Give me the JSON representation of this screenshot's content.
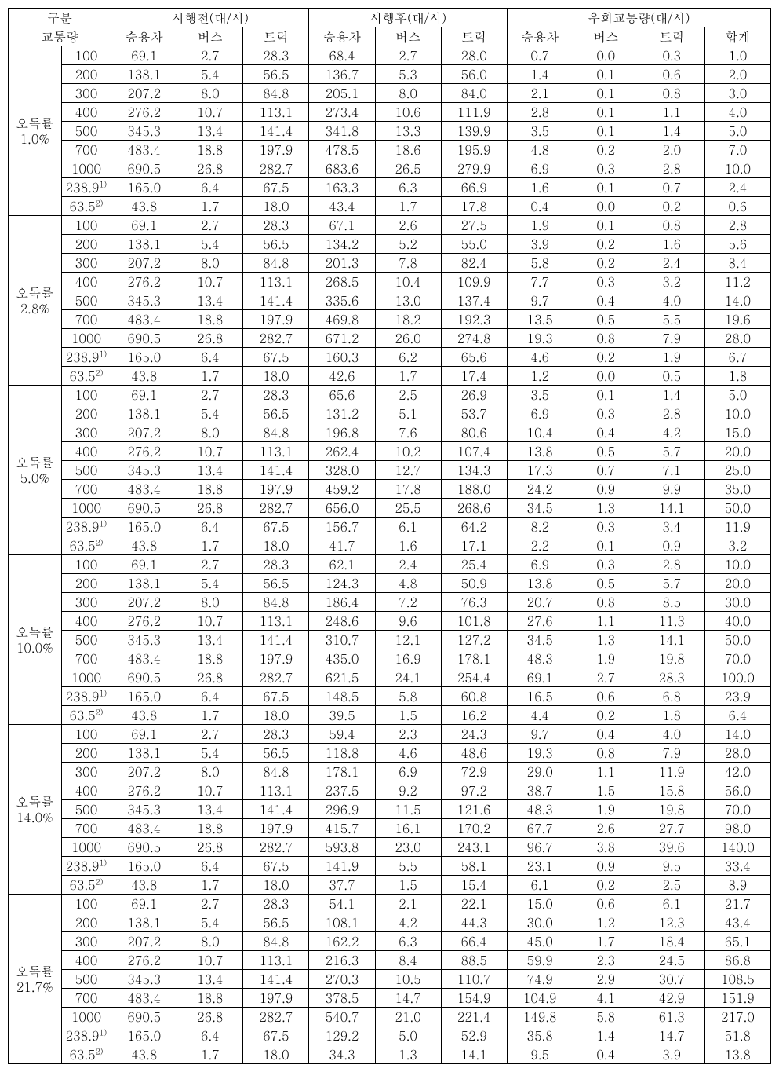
{
  "header": {
    "group": "구분",
    "traffic": "교통량",
    "before": "시행전(대/시)",
    "after": "시행후(대/시)",
    "detour": "우회교통량(대/시)",
    "car": "승용차",
    "bus": "버스",
    "truck": "트럭",
    "sum": "합계"
  },
  "traffic_labels": [
    "100",
    "200",
    "300",
    "400",
    "500",
    "700",
    "1000",
    "238.9",
    "63.5"
  ],
  "traffic_sup": [
    "",
    "",
    "",
    "",
    "",
    "",
    "",
    "1)",
    "2)"
  ],
  "groups": [
    {
      "label1": "오독률",
      "label2": "1.0%",
      "rows": [
        {
          "b": [
            "69.1",
            "2.7",
            "28.3"
          ],
          "a": [
            "68.4",
            "2.7",
            "28.0"
          ],
          "d": [
            "0.7",
            "0.0",
            "0.3",
            "1.0"
          ]
        },
        {
          "b": [
            "138.1",
            "5.4",
            "56.5"
          ],
          "a": [
            "136.7",
            "5.3",
            "56.0"
          ],
          "d": [
            "1.4",
            "0.1",
            "0.6",
            "2.0"
          ]
        },
        {
          "b": [
            "207.2",
            "8.0",
            "84.8"
          ],
          "a": [
            "205.1",
            "8.0",
            "84.0"
          ],
          "d": [
            "2.1",
            "0.1",
            "0.8",
            "3.0"
          ]
        },
        {
          "b": [
            "276.2",
            "10.7",
            "113.1"
          ],
          "a": [
            "273.4",
            "10.6",
            "111.9"
          ],
          "d": [
            "2.8",
            "0.1",
            "1.1",
            "4.0"
          ]
        },
        {
          "b": [
            "345.3",
            "13.4",
            "141.4"
          ],
          "a": [
            "341.8",
            "13.3",
            "139.9"
          ],
          "d": [
            "3.5",
            "0.1",
            "1.4",
            "5.0"
          ]
        },
        {
          "b": [
            "483.4",
            "18.8",
            "197.9"
          ],
          "a": [
            "478.5",
            "18.6",
            "195.9"
          ],
          "d": [
            "4.8",
            "0.2",
            "2.0",
            "7.0"
          ]
        },
        {
          "b": [
            "690.5",
            "26.8",
            "282.7"
          ],
          "a": [
            "683.6",
            "26.5",
            "279.9"
          ],
          "d": [
            "6.9",
            "0.3",
            "2.8",
            "10.0"
          ]
        },
        {
          "b": [
            "165.0",
            "6.4",
            "67.5"
          ],
          "a": [
            "163.3",
            "6.3",
            "66.9"
          ],
          "d": [
            "1.6",
            "0.1",
            "0.7",
            "2.4"
          ]
        },
        {
          "b": [
            "43.8",
            "1.7",
            "18.0"
          ],
          "a": [
            "43.4",
            "1.7",
            "17.8"
          ],
          "d": [
            "0.4",
            "0.0",
            "0.2",
            "0.6"
          ]
        }
      ]
    },
    {
      "label1": "오독률",
      "label2": "2.8%",
      "rows": [
        {
          "b": [
            "69.1",
            "2.7",
            "28.3"
          ],
          "a": [
            "67.1",
            "2.6",
            "27.5"
          ],
          "d": [
            "1.9",
            "0.1",
            "0.8",
            "2.8"
          ]
        },
        {
          "b": [
            "138.1",
            "5.4",
            "56.5"
          ],
          "a": [
            "134.2",
            "5.2",
            "55.0"
          ],
          "d": [
            "3.9",
            "0.2",
            "1.6",
            "5.6"
          ]
        },
        {
          "b": [
            "207.2",
            "8.0",
            "84.8"
          ],
          "a": [
            "201.3",
            "7.8",
            "82.4"
          ],
          "d": [
            "5.8",
            "0.2",
            "2.4",
            "8.4"
          ]
        },
        {
          "b": [
            "276.2",
            "10.7",
            "113.1"
          ],
          "a": [
            "268.5",
            "10.4",
            "109.9"
          ],
          "d": [
            "7.7",
            "0.3",
            "3.2",
            "11.2"
          ]
        },
        {
          "b": [
            "345.3",
            "13.4",
            "141.4"
          ],
          "a": [
            "335.6",
            "13.0",
            "137.4"
          ],
          "d": [
            "9.7",
            "0.4",
            "4.0",
            "14.0"
          ]
        },
        {
          "b": [
            "483.4",
            "18.8",
            "197.9"
          ],
          "a": [
            "469.8",
            "18.2",
            "192.3"
          ],
          "d": [
            "13.5",
            "0.5",
            "5.5",
            "19.6"
          ]
        },
        {
          "b": [
            "690.5",
            "26.8",
            "282.7"
          ],
          "a": [
            "671.2",
            "26.0",
            "274.8"
          ],
          "d": [
            "19.3",
            "0.8",
            "7.9",
            "28.0"
          ]
        },
        {
          "b": [
            "165.0",
            "6.4",
            "67.5"
          ],
          "a": [
            "160.3",
            "6.2",
            "65.6"
          ],
          "d": [
            "4.6",
            "0.2",
            "1.9",
            "6.7"
          ]
        },
        {
          "b": [
            "43.8",
            "1.7",
            "18.0"
          ],
          "a": [
            "42.6",
            "1.7",
            "17.4"
          ],
          "d": [
            "1.2",
            "0.0",
            "0.5",
            "1.8"
          ]
        }
      ]
    },
    {
      "label1": "오독률",
      "label2": "5.0%",
      "rows": [
        {
          "b": [
            "69.1",
            "2.7",
            "28.3"
          ],
          "a": [
            "65.6",
            "2.5",
            "26.9"
          ],
          "d": [
            "3.5",
            "0.1",
            "1.4",
            "5.0"
          ]
        },
        {
          "b": [
            "138.1",
            "5.4",
            "56.5"
          ],
          "a": [
            "131.2",
            "5.1",
            "53.7"
          ],
          "d": [
            "6.9",
            "0.3",
            "2.8",
            "10.0"
          ]
        },
        {
          "b": [
            "207.2",
            "8.0",
            "84.8"
          ],
          "a": [
            "196.8",
            "7.6",
            "80.6"
          ],
          "d": [
            "10.4",
            "0.4",
            "4.2",
            "15.0"
          ]
        },
        {
          "b": [
            "276.2",
            "10.7",
            "113.1"
          ],
          "a": [
            "262.4",
            "10.2",
            "107.4"
          ],
          "d": [
            "13.8",
            "0.5",
            "5.7",
            "20.0"
          ]
        },
        {
          "b": [
            "345.3",
            "13.4",
            "141.4"
          ],
          "a": [
            "328.0",
            "12.7",
            "134.3"
          ],
          "d": [
            "17.3",
            "0.7",
            "7.1",
            "25.0"
          ]
        },
        {
          "b": [
            "483.4",
            "18.8",
            "197.9"
          ],
          "a": [
            "459.2",
            "17.8",
            "188.0"
          ],
          "d": [
            "24.2",
            "0.9",
            "9.9",
            "35.0"
          ]
        },
        {
          "b": [
            "690.5",
            "26.8",
            "282.7"
          ],
          "a": [
            "656.0",
            "25.5",
            "268.6"
          ],
          "d": [
            "34.5",
            "1.3",
            "14.1",
            "50.0"
          ]
        },
        {
          "b": [
            "165.0",
            "6.4",
            "67.5"
          ],
          "a": [
            "156.7",
            "6.1",
            "64.2"
          ],
          "d": [
            "8.2",
            "0.3",
            "3.4",
            "11.9"
          ]
        },
        {
          "b": [
            "43.8",
            "1.7",
            "18.0"
          ],
          "a": [
            "41.7",
            "1.6",
            "17.1"
          ],
          "d": [
            "2.2",
            "0.1",
            "0.9",
            "3.2"
          ]
        }
      ]
    },
    {
      "label1": "오독률",
      "label2": "10.0%",
      "rows": [
        {
          "b": [
            "69.1",
            "2.7",
            "28.3"
          ],
          "a": [
            "62.1",
            "2.4",
            "25.4"
          ],
          "d": [
            "6.9",
            "0.3",
            "2.8",
            "10.0"
          ]
        },
        {
          "b": [
            "138.1",
            "5.4",
            "56.5"
          ],
          "a": [
            "124.3",
            "4.8",
            "50.9"
          ],
          "d": [
            "13.8",
            "0.5",
            "5.7",
            "20.0"
          ]
        },
        {
          "b": [
            "207.2",
            "8.0",
            "84.8"
          ],
          "a": [
            "186.4",
            "7.2",
            "76.3"
          ],
          "d": [
            "20.7",
            "0.8",
            "8.5",
            "30.0"
          ]
        },
        {
          "b": [
            "276.2",
            "10.7",
            "113.1"
          ],
          "a": [
            "248.6",
            "9.6",
            "101.8"
          ],
          "d": [
            "27.6",
            "1.1",
            "11.3",
            "40.0"
          ]
        },
        {
          "b": [
            "345.3",
            "13.4",
            "141.4"
          ],
          "a": [
            "310.7",
            "12.1",
            "127.2"
          ],
          "d": [
            "34.5",
            "1.3",
            "14.1",
            "50.0"
          ]
        },
        {
          "b": [
            "483.4",
            "18.8",
            "197.9"
          ],
          "a": [
            "435.0",
            "16.9",
            "178.1"
          ],
          "d": [
            "48.3",
            "1.9",
            "19.8",
            "70.0"
          ]
        },
        {
          "b": [
            "690.5",
            "26.8",
            "282.7"
          ],
          "a": [
            "621.5",
            "24.1",
            "254.4"
          ],
          "d": [
            "69.1",
            "2.7",
            "28.3",
            "100.0"
          ]
        },
        {
          "b": [
            "165.0",
            "6.4",
            "67.5"
          ],
          "a": [
            "148.5",
            "5.8",
            "60.8"
          ],
          "d": [
            "16.5",
            "0.6",
            "6.8",
            "23.9"
          ]
        },
        {
          "b": [
            "43.8",
            "1.7",
            "18.0"
          ],
          "a": [
            "39.5",
            "1.5",
            "16.2"
          ],
          "d": [
            "4.4",
            "0.2",
            "1.8",
            "6.4"
          ]
        }
      ]
    },
    {
      "label1": "오독률",
      "label2": "14.0%",
      "rows": [
        {
          "b": [
            "69.1",
            "2.7",
            "28.3"
          ],
          "a": [
            "59.4",
            "2.3",
            "24.3"
          ],
          "d": [
            "9.7",
            "0.4",
            "4.0",
            "14.0"
          ]
        },
        {
          "b": [
            "138.1",
            "5.4",
            "56.5"
          ],
          "a": [
            "118.8",
            "4.6",
            "48.6"
          ],
          "d": [
            "19.3",
            "0.8",
            "7.9",
            "28.0"
          ]
        },
        {
          "b": [
            "207.2",
            "8.0",
            "84.8"
          ],
          "a": [
            "178.1",
            "6.9",
            "72.9"
          ],
          "d": [
            "29.0",
            "1.1",
            "11.9",
            "42.0"
          ]
        },
        {
          "b": [
            "276.2",
            "10.7",
            "113.1"
          ],
          "a": [
            "237.5",
            "9.2",
            "97.2"
          ],
          "d": [
            "38.7",
            "1.5",
            "15.8",
            "56.0"
          ]
        },
        {
          "b": [
            "345.3",
            "13.4",
            "141.4"
          ],
          "a": [
            "296.9",
            "11.5",
            "121.6"
          ],
          "d": [
            "48.3",
            "1.9",
            "19.8",
            "70.0"
          ]
        },
        {
          "b": [
            "483.4",
            "18.8",
            "197.9"
          ],
          "a": [
            "415.7",
            "16.1",
            "170.2"
          ],
          "d": [
            "67.7",
            "2.6",
            "27.7",
            "98.0"
          ]
        },
        {
          "b": [
            "690.5",
            "26.8",
            "282.7"
          ],
          "a": [
            "593.8",
            "23.0",
            "243.1"
          ],
          "d": [
            "96.7",
            "3.8",
            "39.6",
            "140.0"
          ]
        },
        {
          "b": [
            "165.0",
            "6.4",
            "67.5"
          ],
          "a": [
            "141.9",
            "5.5",
            "58.1"
          ],
          "d": [
            "23.1",
            "0.9",
            "9.5",
            "33.4"
          ]
        },
        {
          "b": [
            "43.8",
            "1.7",
            "18.0"
          ],
          "a": [
            "37.7",
            "1.5",
            "15.4"
          ],
          "d": [
            "6.1",
            "0.2",
            "2.5",
            "8.9"
          ]
        }
      ]
    },
    {
      "label1": "오독률",
      "label2": "21.7%",
      "rows": [
        {
          "b": [
            "69.1",
            "2.7",
            "28.3"
          ],
          "a": [
            "54.1",
            "2.1",
            "22.1"
          ],
          "d": [
            "15.0",
            "0.6",
            "6.1",
            "21.7"
          ]
        },
        {
          "b": [
            "138.1",
            "5.4",
            "56.5"
          ],
          "a": [
            "108.1",
            "4.2",
            "44.3"
          ],
          "d": [
            "30.0",
            "1.2",
            "12.3",
            "43.4"
          ]
        },
        {
          "b": [
            "207.2",
            "8.0",
            "84.8"
          ],
          "a": [
            "162.2",
            "6.3",
            "66.4"
          ],
          "d": [
            "45.0",
            "1.7",
            "18.4",
            "65.1"
          ]
        },
        {
          "b": [
            "276.2",
            "10.7",
            "113.1"
          ],
          "a": [
            "216.3",
            "8.4",
            "88.5"
          ],
          "d": [
            "59.9",
            "2.3",
            "24.5",
            "86.8"
          ]
        },
        {
          "b": [
            "345.3",
            "13.4",
            "141.4"
          ],
          "a": [
            "270.3",
            "10.5",
            "110.7"
          ],
          "d": [
            "74.9",
            "2.9",
            "30.7",
            "108.5"
          ]
        },
        {
          "b": [
            "483.4",
            "18.8",
            "197.9"
          ],
          "a": [
            "378.5",
            "14.7",
            "154.9"
          ],
          "d": [
            "104.9",
            "4.1",
            "42.9",
            "151.9"
          ]
        },
        {
          "b": [
            "690.5",
            "26.8",
            "282.7"
          ],
          "a": [
            "540.7",
            "21.0",
            "221.4"
          ],
          "d": [
            "149.8",
            "5.8",
            "61.3",
            "217.0"
          ]
        },
        {
          "b": [
            "165.0",
            "6.4",
            "67.5"
          ],
          "a": [
            "129.2",
            "5.0",
            "52.9"
          ],
          "d": [
            "35.8",
            "1.4",
            "14.7",
            "51.8"
          ]
        },
        {
          "b": [
            "43.8",
            "1.7",
            "18.0"
          ],
          "a": [
            "34.3",
            "1.3",
            "14.1"
          ],
          "d": [
            "9.5",
            "0.4",
            "3.9",
            "13.8"
          ]
        }
      ]
    }
  ]
}
